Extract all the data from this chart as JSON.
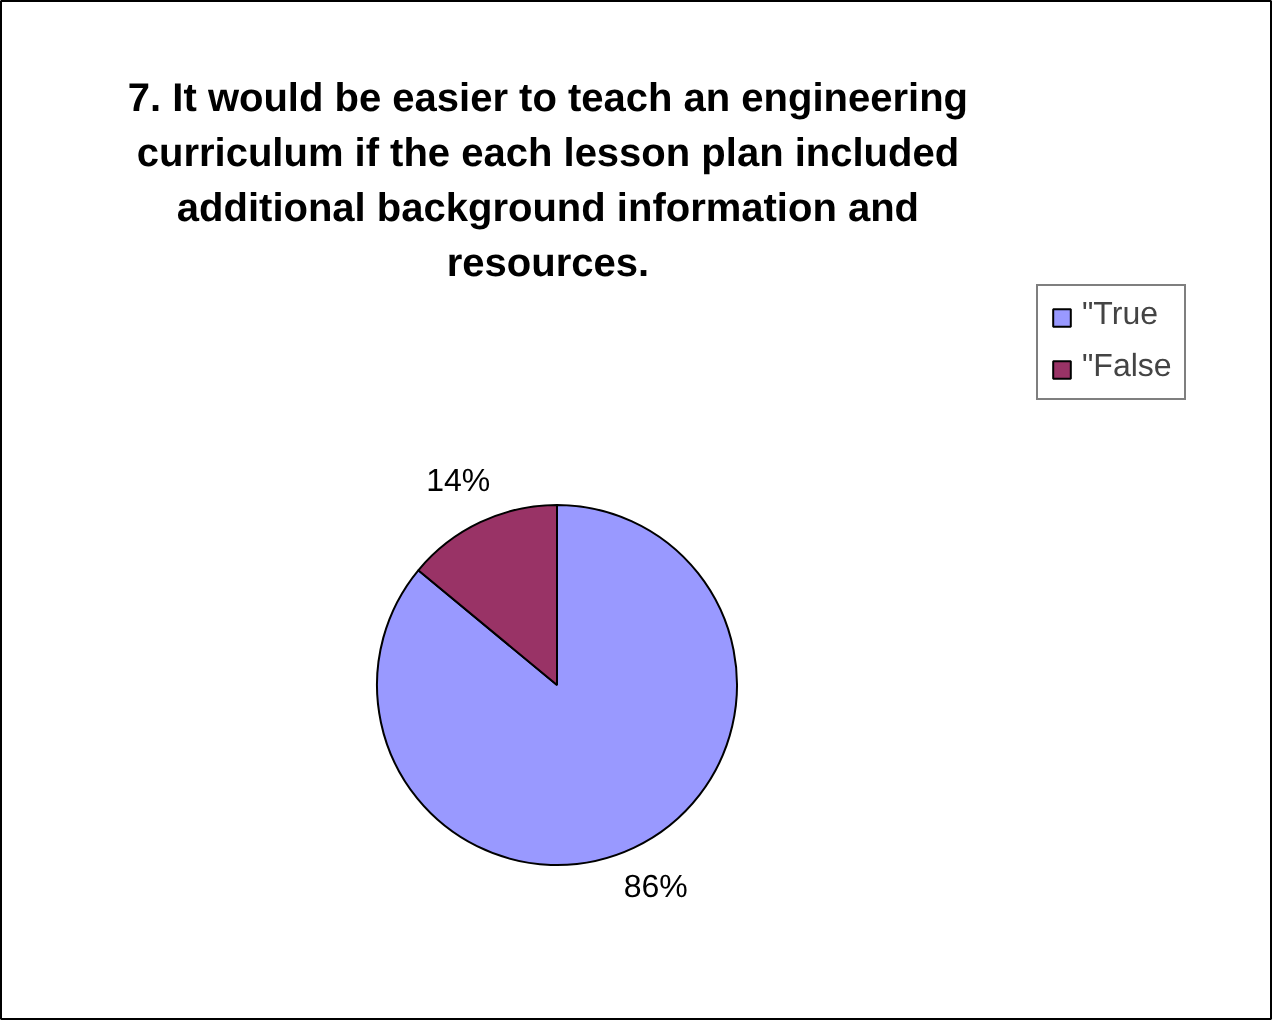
{
  "chart_data": {
    "type": "pie",
    "title": "7. It would be easier to teach an engineering curriculum if the each lesson plan included additional background information and resources.",
    "categories": [
      "\"True",
      "\"False"
    ],
    "values": [
      86,
      14
    ],
    "colors": [
      "#9999ff",
      "#993366"
    ],
    "value_labels": [
      "86%",
      "14%"
    ],
    "legend": "right"
  }
}
